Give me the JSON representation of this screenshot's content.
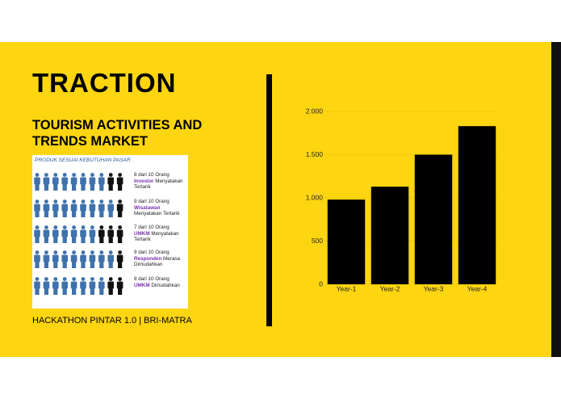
{
  "slide": {
    "title": "TRACTION",
    "subtitle_lines": [
      "TOURISM ACTIVITIES AND",
      "TRENDS MARKET"
    ],
    "footer": "HACKATHON PINTAR 1.0 | BRI-MATRA",
    "infographic": {
      "heading": "PRODUK SESUAI KEBUTUHAN PASAR",
      "rows": [
        {
          "count": 8,
          "of": "dari",
          "total": 10,
          "unit": "Orang",
          "highlight": "Investor",
          "rest": "Menyatakan Tertarik"
        },
        {
          "count": 9,
          "of": "dari",
          "total": 10,
          "unit": "Orang",
          "highlight": "Wisatawan",
          "rest": "Menyatakan Tertarik"
        },
        {
          "count": 7,
          "of": "dari",
          "total": 10,
          "unit": "Orang",
          "highlight": "UMKM",
          "rest": "Menyatakan Tertarik"
        },
        {
          "count": 9,
          "of": "dari",
          "total": 10,
          "unit": "Orang",
          "highlight": "Responden",
          "rest": "Merasa Dimudahkan"
        },
        {
          "count": 8,
          "of": "dari",
          "total": 10,
          "unit": "Orang",
          "highlight": "UMKM",
          "rest": "Dimudahkan"
        }
      ]
    }
  },
  "chart_data": {
    "type": "bar",
    "categories": [
      "Year-1",
      "Year-2",
      "Year-3",
      "Year-4"
    ],
    "values": [
      980,
      1130,
      1500,
      1830
    ],
    "color": "#000000",
    "ylim": [
      0,
      2000
    ],
    "yticks": [
      0,
      500,
      {
        "value": 1000,
        "label": "1.000"
      },
      {
        "value": 1500,
        "label": "1.500"
      },
      {
        "value": 2000,
        "label": "2.000"
      }
    ],
    "grid": true
  }
}
